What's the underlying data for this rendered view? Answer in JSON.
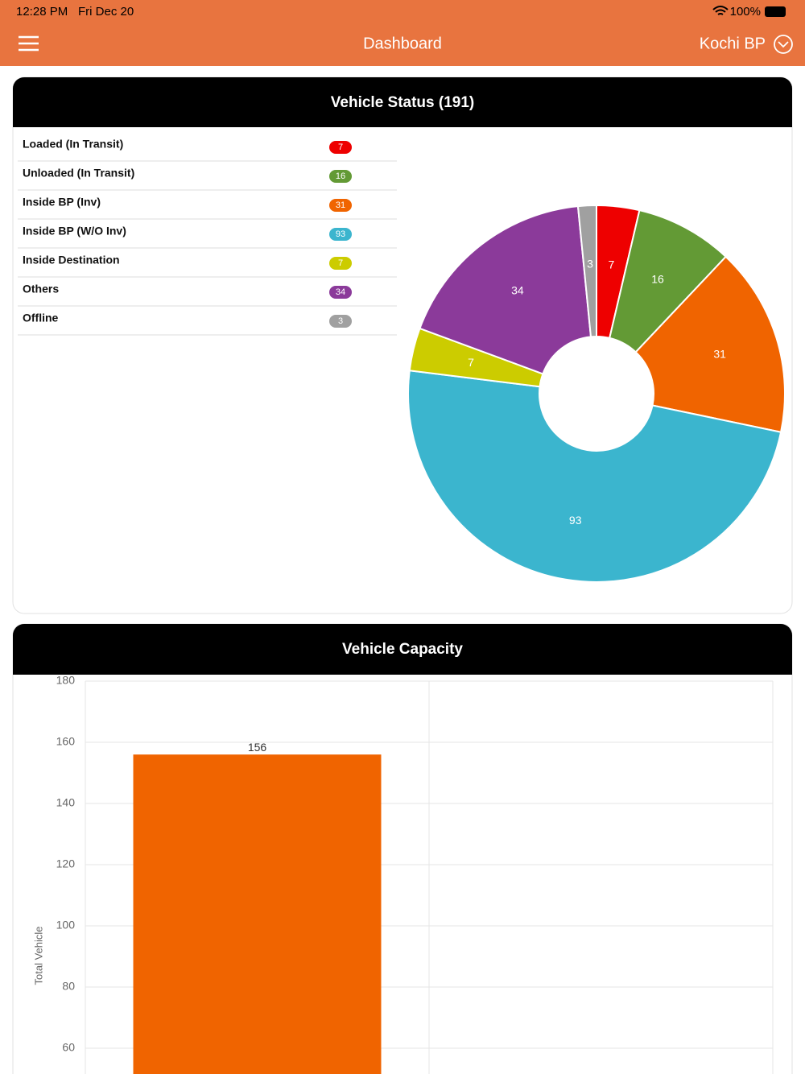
{
  "status_bar": {
    "time": "12:28 PM",
    "date": "Fri Dec 20",
    "battery": "100%"
  },
  "nav": {
    "title": "Dashboard",
    "location": "Kochi BP"
  },
  "chart_data": [
    {
      "type": "pie",
      "title": "Vehicle Status (191)",
      "categories": [
        "Loaded (In Transit)",
        "Unloaded (In Transit)",
        "Inside BP (Inv)",
        "Inside BP (W/O Inv)",
        "Inside Destination",
        "Others",
        "Offline"
      ],
      "values": [
        7,
        16,
        31,
        93,
        7,
        34,
        3
      ],
      "colors": [
        "#ee0000",
        "#639a35",
        "#f06400",
        "#3bb5ce",
        "#cccc00",
        "#8b3a9a",
        "#a0a0a0"
      ]
    },
    {
      "type": "bar",
      "title": "Vehicle Capacity",
      "y_label": "Total Vehicle",
      "categories": [
        null
      ],
      "values": [
        156
      ],
      "color": "#f06400",
      "ylim": [
        0,
        180
      ],
      "yticks": [
        60,
        80,
        100,
        120,
        140,
        160,
        180
      ],
      "grid": true
    }
  ]
}
